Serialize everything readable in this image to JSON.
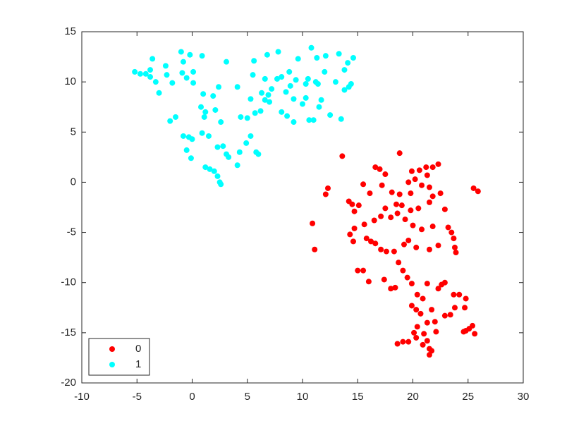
{
  "chart_data": {
    "type": "scatter",
    "series": [
      {
        "name": "0",
        "color": "#ff0000",
        "x": [
          13.6,
          18.8,
          19.9,
          20.6,
          21.2,
          21.8,
          22.3,
          17.5,
          17,
          16.6,
          12.3,
          12.1,
          15.5,
          16.1,
          17.2,
          18.1,
          18.8,
          19.8,
          20.8,
          21.5,
          21.8,
          22.5,
          19.6,
          20.2,
          21.3,
          25.5,
          25.9,
          14.2,
          14.5,
          15.1,
          17.5,
          18.5,
          19,
          19.8,
          20.5,
          21.5,
          22.9,
          14.7,
          14.3,
          14.7,
          15.6,
          16.5,
          17.1,
          18,
          18.6,
          19.3,
          20,
          20.8,
          21.8,
          23.2,
          23.5,
          23.7,
          14.6,
          15.8,
          16.2,
          16.6,
          17.1,
          17.6,
          18.3,
          19.2,
          19.6,
          20.3,
          21.5,
          22.3,
          23.8,
          23.9,
          10.9,
          11.1,
          15,
          15.5,
          16,
          17.4,
          18,
          18.7,
          19.1,
          19.5,
          18.4,
          19.9,
          20.4,
          20.9,
          21.3,
          22.3,
          22.6,
          22.9,
          23.7,
          24.2,
          24.8,
          24.7,
          23.8,
          23.4,
          22.9,
          22,
          21.3,
          20.7,
          20.3,
          19.9,
          21.7,
          22.1,
          21,
          20.3,
          20.1,
          20.4,
          21.3,
          21.5,
          21.7,
          21.5,
          20.9,
          19.1,
          19.6,
          18.6,
          24.8,
          25.1,
          25.4,
          25.6,
          24.6
        ],
        "values": [
          2.6,
          2.9,
          1.1,
          1.2,
          1.5,
          1.5,
          1.8,
          0.8,
          1.3,
          1.5,
          -0.6,
          -1.2,
          -0.2,
          -1.1,
          -0.3,
          -1,
          -1.2,
          -1.1,
          -0.3,
          -0.5,
          -1.4,
          -1.1,
          0,
          0.3,
          0.7,
          -0.6,
          -0.9,
          -1.9,
          -2.2,
          -2.3,
          -2.6,
          -2.2,
          -2.3,
          -2.8,
          -2.6,
          -2,
          -2.7,
          -2.9,
          -5.2,
          -4.6,
          -4.2,
          -3.8,
          -3.4,
          -3.5,
          -3.1,
          -3.7,
          -4.3,
          -4.7,
          -4.4,
          -4.5,
          -5,
          -5.6,
          -5.9,
          -5.6,
          -5.9,
          -6.1,
          -6.7,
          -6.9,
          -6.9,
          -6.2,
          -5.8,
          -6.5,
          -6.7,
          -6.3,
          -6.5,
          -7,
          -4.1,
          -6.7,
          -8.8,
          -8.8,
          -9.9,
          -9.7,
          -10.6,
          -8,
          -8.8,
          -9.5,
          -10.5,
          -10.1,
          -11.2,
          -11.6,
          -10.1,
          -10.6,
          -10.2,
          -10,
          -11.2,
          -11.2,
          -11.6,
          -12.5,
          -12.5,
          -13.2,
          -13.3,
          -13.9,
          -14,
          -13.1,
          -12.7,
          -12.3,
          -12.7,
          -14.9,
          -15.1,
          -15.5,
          -15,
          -14.4,
          -15.8,
          -16.6,
          -16.8,
          -17.2,
          -16.2,
          -15.9,
          -15.9,
          -16.1,
          -14.8,
          -14.6,
          -14.3,
          -15.1,
          -14.9
        ]
      },
      {
        "name": "1",
        "color": "#00ffff",
        "x": [
          -5.2,
          -4.7,
          -4.2,
          -3.8,
          -3.6,
          -3.8,
          -3.3,
          -3,
          -2.4,
          -2.3,
          -1.8,
          -2,
          -1.5,
          -1,
          -0.8,
          -0.9,
          -0.5,
          -0.2,
          0.1,
          0.1,
          0.9,
          -0.8,
          -0.3,
          0,
          -0.5,
          -0.1,
          0.8,
          1,
          1.1,
          1.2,
          0.9,
          1.5,
          1.2,
          1.6,
          2,
          2.3,
          2.5,
          2.6,
          2.3,
          2.8,
          3.1,
          3.3,
          2.6,
          1.9,
          2.1,
          2.4,
          3.1,
          4.1,
          4.4,
          5,
          4.3,
          4.9,
          5.3,
          4.1,
          5.8,
          6,
          5.7,
          6.2,
          5.3,
          6.3,
          5.5,
          5.6,
          6.6,
          6.6,
          7,
          6.8,
          7.8,
          7.7,
          8.1,
          8.6,
          8.5,
          8.8,
          8.9,
          9.2,
          9.6,
          9.2,
          10,
          10.3,
          10.6,
          10.5,
          10.8,
          11.3,
          11.2,
          11.4,
          11.7,
          11.5,
          12,
          12.1,
          11,
          12.5,
          13,
          13.3,
          13.5,
          13.8,
          14.2,
          14.4,
          14.6,
          14.1,
          13.8,
          10.3,
          9.4,
          8.1,
          7.2,
          6.9
        ],
        "values": [
          11,
          10.8,
          10.8,
          11.2,
          12.3,
          10.5,
          10,
          8.9,
          11.6,
          10.7,
          9.9,
          6.1,
          6.5,
          13,
          12,
          10.9,
          10.4,
          12.7,
          11,
          9.9,
          12.6,
          4.6,
          4.5,
          4.3,
          3.2,
          2.4,
          7.5,
          8.8,
          6.5,
          7,
          4.9,
          4.6,
          1.5,
          1.3,
          1.1,
          0.6,
          0,
          -0.2,
          3.5,
          3.6,
          2.8,
          2.5,
          6,
          8.6,
          7.2,
          9.5,
          12,
          9.5,
          6.5,
          6.4,
          3,
          3.9,
          4.6,
          1.7,
          3,
          2.8,
          6.9,
          7.1,
          8.3,
          8.9,
          10.7,
          12.1,
          10.3,
          8.2,
          8,
          12.7,
          13,
          10.3,
          7,
          6.6,
          9,
          11,
          9.6,
          8.3,
          12.3,
          6,
          7.8,
          8.4,
          6.2,
          10.3,
          13.4,
          12.4,
          10,
          9.8,
          8.2,
          7.5,
          11,
          12.6,
          6.2,
          6.7,
          10,
          12.8,
          6.3,
          9.2,
          9.5,
          9.8,
          12.4,
          11.9,
          11.2,
          9.8,
          10.2,
          10.5,
          9.3,
          8.7
        ]
      }
    ],
    "xlim": [
      -10,
      30
    ],
    "xticks": [
      -10,
      -5,
      0,
      5,
      10,
      15,
      20,
      25,
      30
    ],
    "ylim": [
      -20,
      15
    ],
    "yticks": [
      -20,
      -15,
      -10,
      -5,
      0,
      5,
      10,
      15
    ],
    "grid": false,
    "legend": "lower left"
  }
}
